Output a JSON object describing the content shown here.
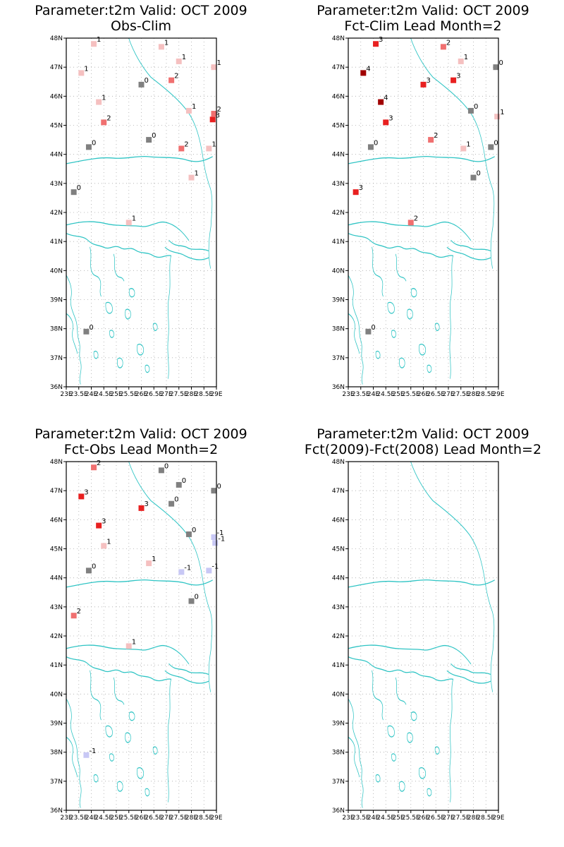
{
  "colors": {
    "coast": "#2ec4c4",
    "grid": "#aaaaaa",
    "frame": "#000000",
    "value_colors": {
      "-1": "#c8c8f5",
      "0": "#808080",
      "1": "#f5c0c0",
      "2": "#f07070",
      "3": "#e82020",
      "4": "#a00000"
    }
  },
  "axes": {
    "lat_labels": [
      "48N",
      "47N",
      "46N",
      "45N",
      "44N",
      "43N",
      "42N",
      "41N",
      "40N",
      "39N",
      "38N",
      "37N",
      "36N"
    ],
    "lon_labels": [
      "23E",
      "23.5E",
      "24E",
      "24.5E",
      "25E",
      "25.5E",
      "26E",
      "26.5E",
      "27E",
      "27.5E",
      "28E",
      "28.5E",
      "29E"
    ],
    "lat_range": [
      36,
      48
    ],
    "lon_range": [
      23,
      29
    ]
  },
  "panels": [
    {
      "title1": "Parameter:t2m  Valid: OCT 2009",
      "title2": "Obs-Clim",
      "stations": [
        {
          "lon": 24.1,
          "lat": 47.8,
          "v": 1
        },
        {
          "lon": 23.6,
          "lat": 46.8,
          "v": 1
        },
        {
          "lon": 26.8,
          "lat": 47.7,
          "v": 1
        },
        {
          "lon": 27.5,
          "lat": 47.2,
          "v": 1
        },
        {
          "lon": 28.9,
          "lat": 47.0,
          "v": 1
        },
        {
          "lon": 26.0,
          "lat": 46.4,
          "v": 0
        },
        {
          "lon": 27.2,
          "lat": 46.55,
          "v": 2
        },
        {
          "lon": 24.3,
          "lat": 45.8,
          "v": 1
        },
        {
          "lon": 27.9,
          "lat": 45.5,
          "v": 1
        },
        {
          "lon": 24.5,
          "lat": 45.1,
          "v": 2
        },
        {
          "lon": 28.9,
          "lat": 45.4,
          "v": 2
        },
        {
          "lon": 28.85,
          "lat": 45.2,
          "v": 3
        },
        {
          "lon": 23.9,
          "lat": 44.25,
          "v": 0
        },
        {
          "lon": 26.3,
          "lat": 44.5,
          "v": 0
        },
        {
          "lon": 27.6,
          "lat": 44.2,
          "v": 2
        },
        {
          "lon": 28.7,
          "lat": 44.2,
          "v": 1
        },
        {
          "lon": 28.0,
          "lat": 43.2,
          "v": 1
        },
        {
          "lon": 23.3,
          "lat": 42.7,
          "v": 0
        },
        {
          "lon": 25.5,
          "lat": 41.65,
          "v": 1
        },
        {
          "lon": 23.8,
          "lat": 37.9,
          "v": 0
        }
      ]
    },
    {
      "title1": "Parameter:t2m  Valid: OCT 2009",
      "title2": "Fct-Clim Lead Month=2",
      "stations": [
        {
          "lon": 24.1,
          "lat": 47.8,
          "v": 3
        },
        {
          "lon": 23.6,
          "lat": 46.8,
          "v": 4
        },
        {
          "lon": 26.8,
          "lat": 47.7,
          "v": 2
        },
        {
          "lon": 27.5,
          "lat": 47.2,
          "v": 1
        },
        {
          "lon": 28.9,
          "lat": 47.0,
          "v": 0
        },
        {
          "lon": 26.0,
          "lat": 46.4,
          "v": 3
        },
        {
          "lon": 27.2,
          "lat": 46.55,
          "v": 3
        },
        {
          "lon": 24.3,
          "lat": 45.8,
          "v": 4
        },
        {
          "lon": 27.9,
          "lat": 45.5,
          "v": 0
        },
        {
          "lon": 24.5,
          "lat": 45.1,
          "v": 3
        },
        {
          "lon": 28.95,
          "lat": 45.3,
          "v": 1
        },
        {
          "lon": 23.9,
          "lat": 44.25,
          "v": 0
        },
        {
          "lon": 26.3,
          "lat": 44.5,
          "v": 2
        },
        {
          "lon": 27.6,
          "lat": 44.2,
          "v": 1
        },
        {
          "lon": 28.7,
          "lat": 44.25,
          "v": 0
        },
        {
          "lon": 28.0,
          "lat": 43.2,
          "v": 0
        },
        {
          "lon": 23.3,
          "lat": 42.7,
          "v": 3
        },
        {
          "lon": 25.5,
          "lat": 41.65,
          "v": 2
        },
        {
          "lon": 23.8,
          "lat": 37.9,
          "v": 0
        }
      ]
    },
    {
      "title1": "Parameter:t2m  Valid: OCT 2009",
      "title2": "Fct-Obs Lead Month=2",
      "stations": [
        {
          "lon": 24.1,
          "lat": 47.8,
          "v": 2
        },
        {
          "lon": 23.6,
          "lat": 46.8,
          "v": 3
        },
        {
          "lon": 26.8,
          "lat": 47.7,
          "v": 0
        },
        {
          "lon": 27.5,
          "lat": 47.2,
          "v": 0
        },
        {
          "lon": 28.9,
          "lat": 47.0,
          "v": 0
        },
        {
          "lon": 26.0,
          "lat": 46.4,
          "v": 3
        },
        {
          "lon": 27.2,
          "lat": 46.55,
          "v": 0
        },
        {
          "lon": 24.3,
          "lat": 45.8,
          "v": 3
        },
        {
          "lon": 27.9,
          "lat": 45.5,
          "v": 0
        },
        {
          "lon": 24.5,
          "lat": 45.1,
          "v": 1
        },
        {
          "lon": 28.9,
          "lat": 45.4,
          "v": -1
        },
        {
          "lon": 28.95,
          "lat": 45.2,
          "v": -1
        },
        {
          "lon": 23.9,
          "lat": 44.25,
          "v": 0
        },
        {
          "lon": 26.3,
          "lat": 44.5,
          "v": 1
        },
        {
          "lon": 27.6,
          "lat": 44.2,
          "v": -1
        },
        {
          "lon": 28.7,
          "lat": 44.25,
          "v": -1
        },
        {
          "lon": 28.0,
          "lat": 43.2,
          "v": 0
        },
        {
          "lon": 23.3,
          "lat": 42.7,
          "v": 2
        },
        {
          "lon": 25.5,
          "lat": 41.65,
          "v": 1
        },
        {
          "lon": 23.8,
          "lat": 37.9,
          "v": -1
        }
      ]
    },
    {
      "title1": "Parameter:t2m  Valid: OCT 2009",
      "title2": "Fct(2009)-Fct(2008) Lead Month=2",
      "stations": []
    }
  ]
}
